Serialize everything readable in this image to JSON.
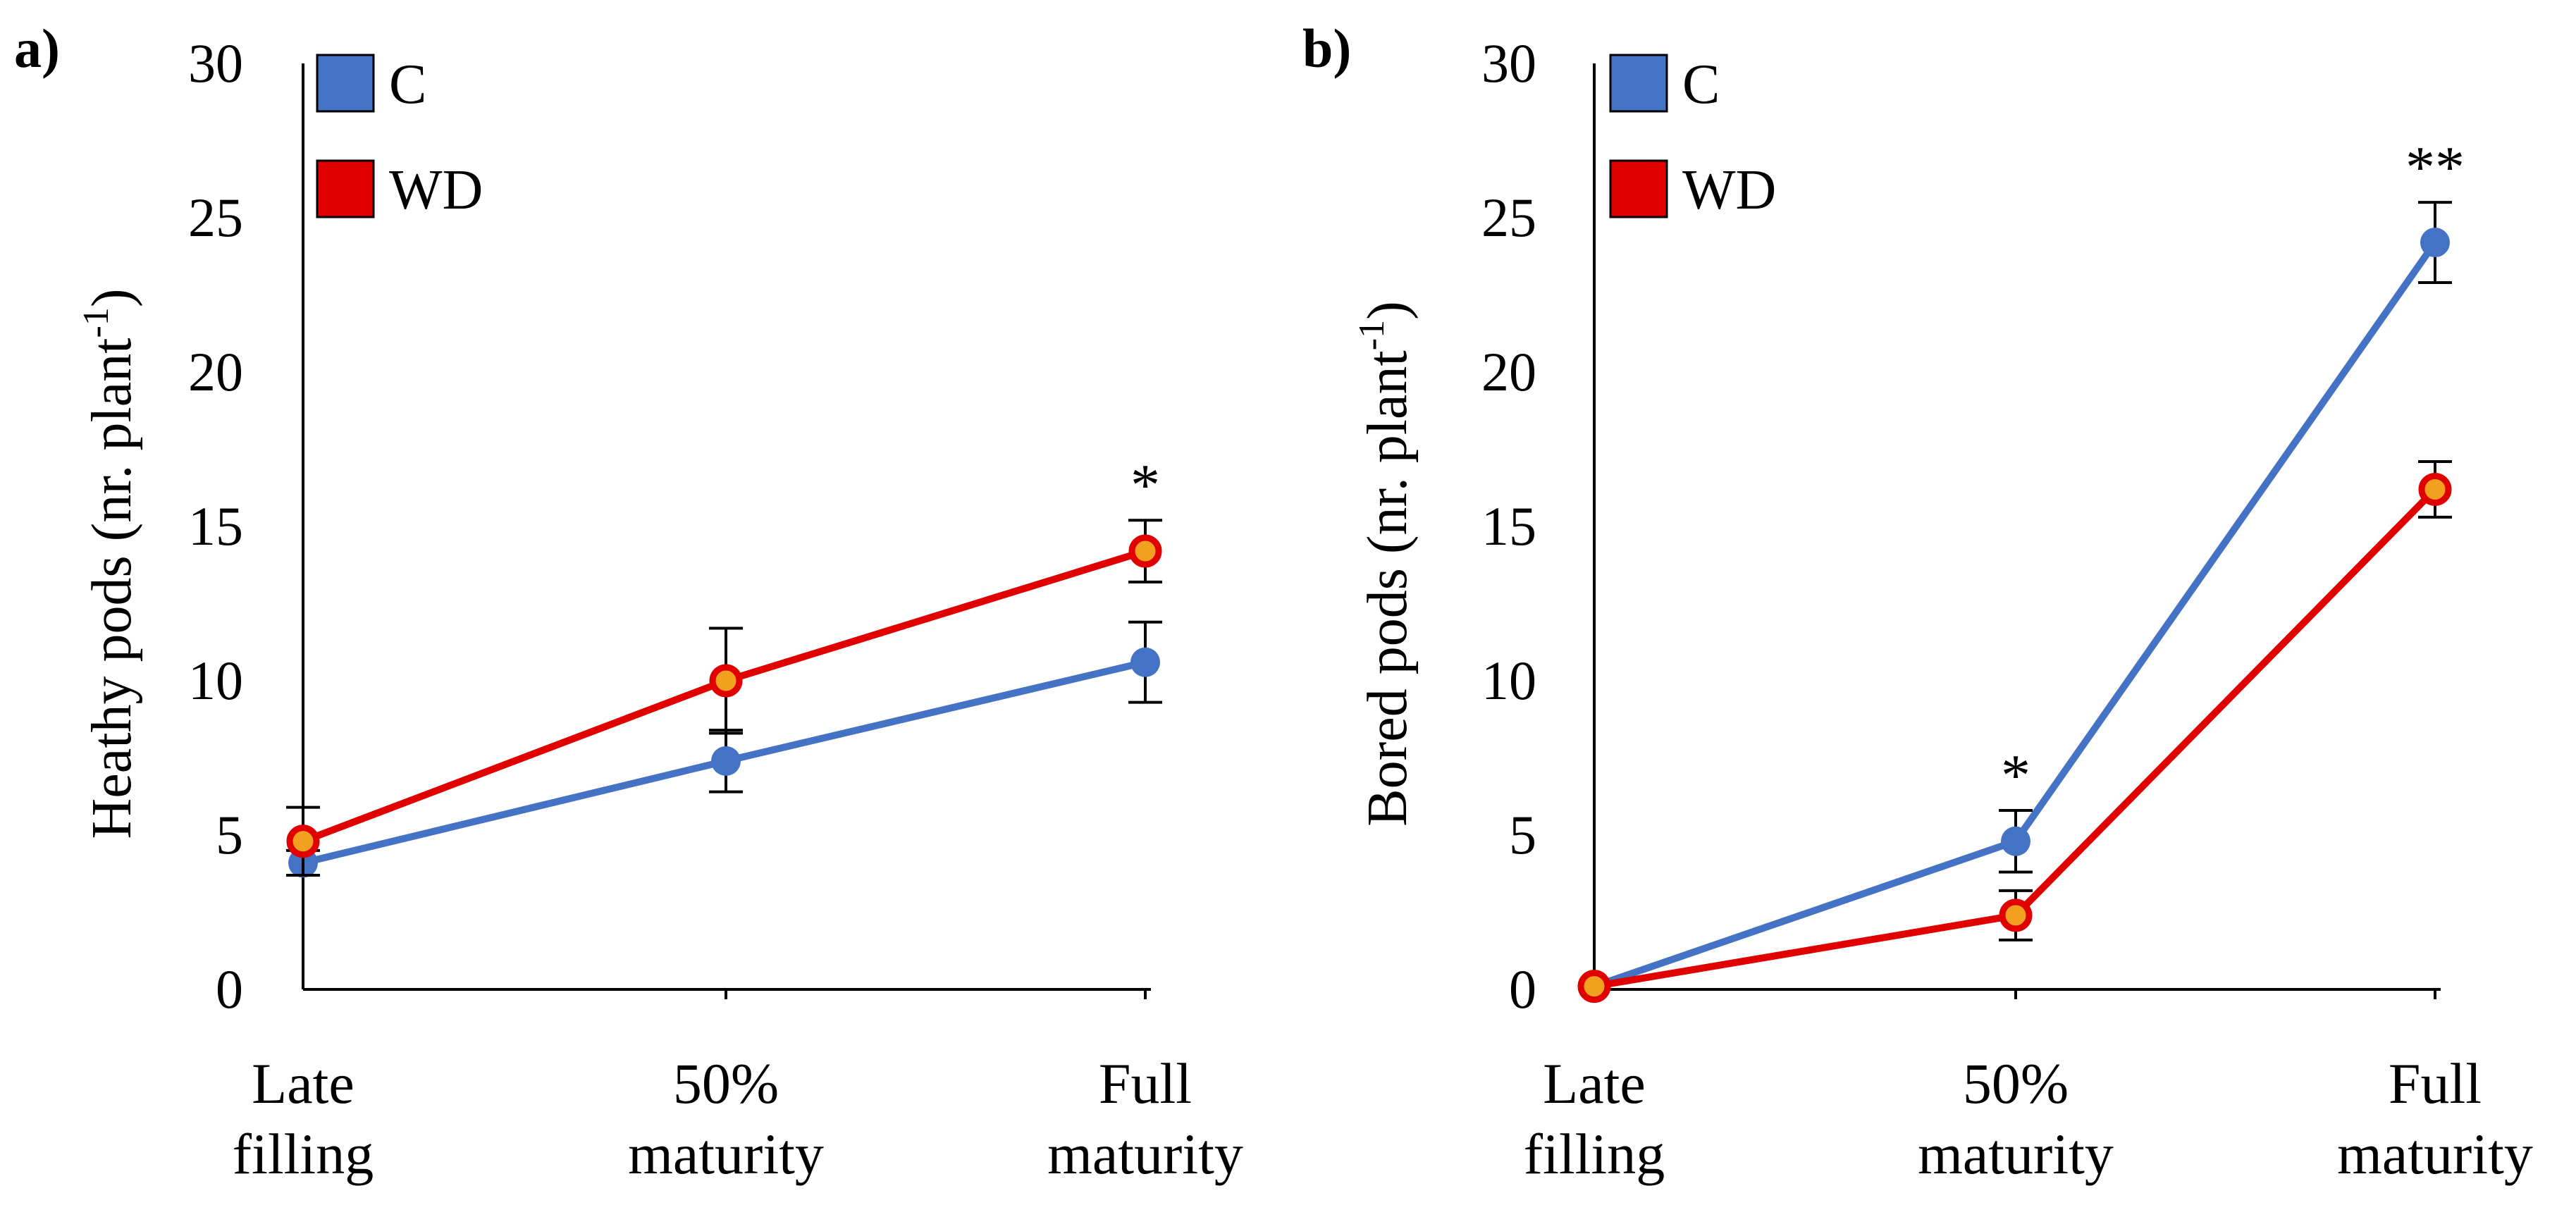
{
  "colors": {
    "C": "#4472C4",
    "WD": "#E00000",
    "WD_marker_center": "#F2A020",
    "axis": "#000000"
  },
  "chart_data": [
    {
      "type": "line",
      "panel_label": "a)",
      "ylabel": "Heathy pods (nr. plant -1)",
      "ylabel_main": "Heathy pods (nr. plant",
      "ylabel_sup": "-1",
      "ylabel_close": ")",
      "ylim": [
        0,
        30
      ],
      "yticks": [
        "0",
        "5",
        "10",
        "15",
        "20",
        "25",
        "30"
      ],
      "grid": false,
      "categories": [
        [
          "Late",
          "filling"
        ],
        [
          "50%",
          "maturity"
        ],
        [
          "Full",
          "maturity"
        ]
      ],
      "legend": [
        "C",
        "WD"
      ],
      "series": [
        {
          "name": "C",
          "values": [
            4.1,
            7.4,
            10.6
          ],
          "err": [
            0.4,
            1.0,
            1.3
          ]
        },
        {
          "name": "WD",
          "values": [
            4.8,
            10.0,
            14.2
          ],
          "err": [
            1.1,
            1.7,
            1.0
          ]
        }
      ],
      "annotations": [
        {
          "category": 2,
          "text": "*"
        }
      ]
    },
    {
      "type": "line",
      "panel_label": "b)",
      "ylabel": "Bored pods (nr. plant -1)",
      "ylabel_main": "Bored pods (nr. plant",
      "ylabel_sup": "-1",
      "ylabel_close": ")",
      "ylim": [
        0,
        30
      ],
      "yticks": [
        "0",
        "5",
        "10",
        "15",
        "20",
        "25",
        "30"
      ],
      "grid": false,
      "categories": [
        [
          "Late",
          "filling"
        ],
        [
          "50%",
          "maturity"
        ],
        [
          "Full",
          "maturity"
        ]
      ],
      "legend": [
        "C",
        "WD"
      ],
      "series": [
        {
          "name": "C",
          "values": [
            0.1,
            4.8,
            24.2
          ],
          "err": [
            0.0,
            1.0,
            1.3
          ]
        },
        {
          "name": "WD",
          "values": [
            0.1,
            2.4,
            16.2
          ],
          "err": [
            0.0,
            0.8,
            0.9
          ]
        }
      ],
      "annotations": [
        {
          "category": 1,
          "text": "*"
        },
        {
          "category": 2,
          "text": "**"
        }
      ]
    }
  ]
}
